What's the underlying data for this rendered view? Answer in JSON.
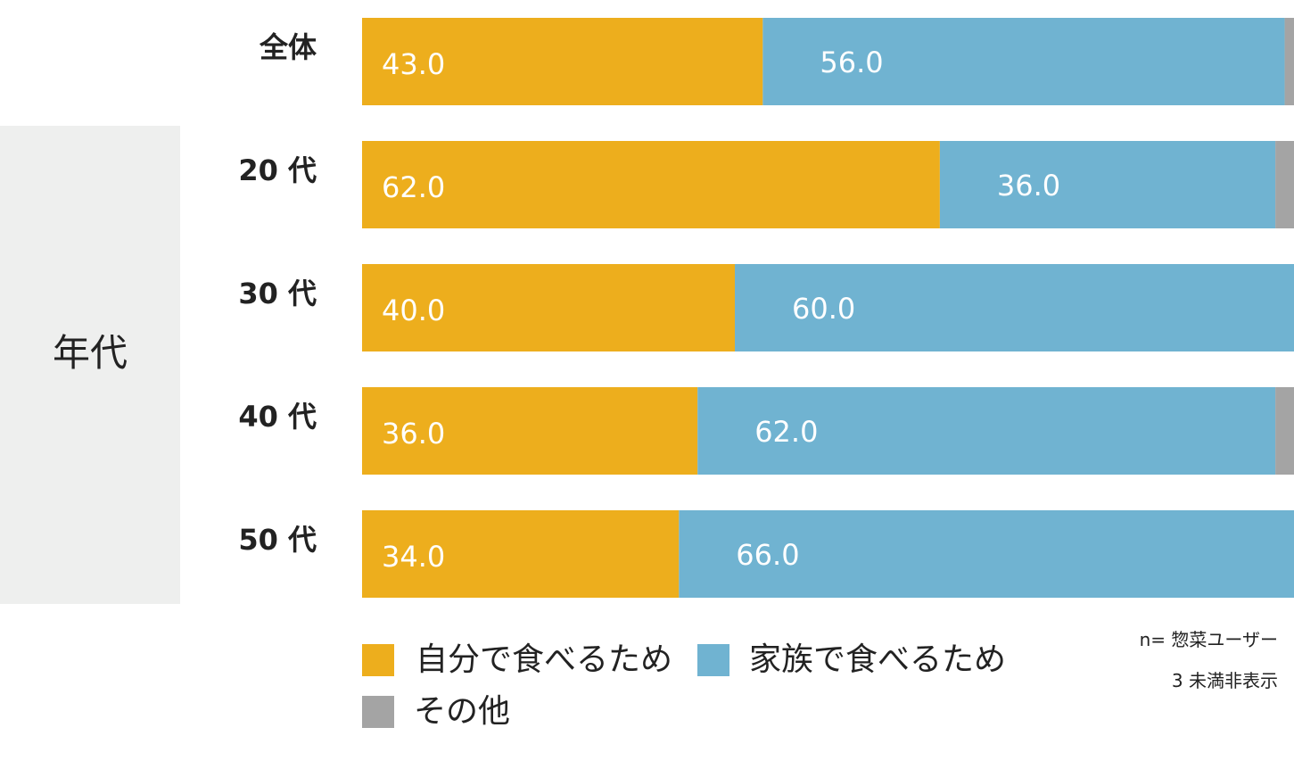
{
  "chart_data": {
    "type": "bar",
    "orientation": "horizontal",
    "stacked": true,
    "percent": true,
    "group_label": "年代",
    "categories": [
      "全体",
      "20 代",
      "30 代",
      "40 代",
      "50 代"
    ],
    "series": [
      {
        "name": "自分で食べるため",
        "color": "#edae1d",
        "values": [
          43.0,
          62.0,
          40.0,
          36.0,
          34.0
        ],
        "labels": [
          "43.0",
          "62.0",
          "40.0",
          "36.0",
          "34.0"
        ]
      },
      {
        "name": "家族で食べるため",
        "color": "#70b3d1",
        "values": [
          56.0,
          36.0,
          60.0,
          62.0,
          66.0
        ],
        "labels": [
          "56.0",
          "36.0",
          "60.0",
          "62.0",
          "66.0"
        ]
      },
      {
        "name": "その他",
        "color": "#a4a4a4",
        "values": [
          1.0,
          2.0,
          0.0,
          2.0,
          0.0
        ],
        "labels": [
          "",
          "",
          "",
          "",
          ""
        ]
      }
    ],
    "xlim": [
      0,
      100
    ]
  },
  "legend": {
    "items": [
      {
        "label": "自分で食べるため",
        "color": "#edae1d"
      },
      {
        "label": "家族で食べるため",
        "color": "#70b3d1"
      },
      {
        "label": "その他",
        "color": "#a4a4a4"
      }
    ]
  },
  "notes": {
    "sample": "n= 惣菜ユーザー",
    "hidden": "3 未満非表示"
  }
}
